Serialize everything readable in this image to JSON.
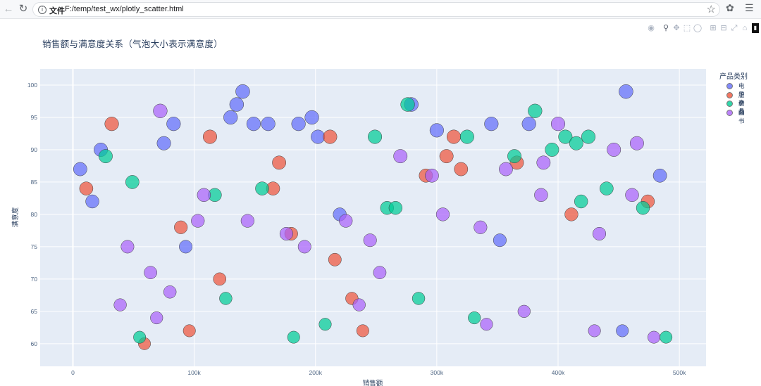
{
  "browser": {
    "file_label": "文件",
    "url": "F:/temp/test_wx/plotly_scatter.html"
  },
  "modebar": {
    "icons": [
      "camera-icon",
      "zoom-icon",
      "pan-icon",
      "box-select-icon",
      "lasso-icon",
      "zoom-in-icon",
      "zoom-out-icon",
      "autoscale-icon",
      "reset-axes-icon",
      "plotly-logo-icon"
    ]
  },
  "colors": {
    "plot_bg": "#e5ecf6",
    "电子产品": "#636efa",
    "服装": "#ef553b",
    "食品": "#00cc96",
    "图书": "#ab63fa"
  },
  "chart_data": {
    "type": "scatter",
    "title": "销售额与满意度关系（气泡大小表示满意度）",
    "xlabel": "销售额",
    "ylabel": "满意度",
    "xlim": [
      -27000,
      522000
    ],
    "ylim": [
      56.5,
      102.5
    ],
    "x_ticks": [
      0,
      100000,
      200000,
      300000,
      400000,
      500000
    ],
    "x_tick_labels": [
      "0",
      "100k",
      "200k",
      "300k",
      "400k",
      "500k"
    ],
    "y_ticks": [
      60,
      65,
      70,
      75,
      80,
      85,
      90,
      95,
      100
    ],
    "y_tick_labels": [
      "60",
      "65",
      "70",
      "75",
      "80",
      "85",
      "90",
      "95",
      "100"
    ],
    "grid": true,
    "legend_title": "产品类别",
    "legend_position": "top-right",
    "series": [
      {
        "name": "电子产品",
        "points": [
          [
            6000,
            87
          ],
          [
            16000,
            82
          ],
          [
            23000,
            90
          ],
          [
            75000,
            91
          ],
          [
            83000,
            94
          ],
          [
            93000,
            75
          ],
          [
            130000,
            95
          ],
          [
            135000,
            97
          ],
          [
            140000,
            99
          ],
          [
            149000,
            94
          ],
          [
            161000,
            94
          ],
          [
            186000,
            94
          ],
          [
            197000,
            95
          ],
          [
            202000,
            92
          ],
          [
            220000,
            80
          ],
          [
            300000,
            93
          ],
          [
            345000,
            94
          ],
          [
            352000,
            76
          ],
          [
            376000,
            94
          ],
          [
            453000,
            62
          ],
          [
            456000,
            99
          ],
          [
            484000,
            86
          ],
          [
            279000,
            97
          ]
        ]
      },
      {
        "name": "服装",
        "points": [
          [
            11000,
            84
          ],
          [
            32000,
            94
          ],
          [
            59000,
            60
          ],
          [
            89000,
            78
          ],
          [
            96000,
            62
          ],
          [
            113000,
            92
          ],
          [
            121000,
            70
          ],
          [
            165000,
            84
          ],
          [
            170000,
            88
          ],
          [
            180000,
            77
          ],
          [
            212000,
            92
          ],
          [
            216000,
            73
          ],
          [
            230000,
            67
          ],
          [
            239000,
            62
          ],
          [
            291000,
            86
          ],
          [
            308000,
            89
          ],
          [
            314000,
            92
          ],
          [
            320000,
            87
          ],
          [
            366000,
            88
          ],
          [
            411000,
            80
          ],
          [
            474000,
            82
          ]
        ]
      },
      {
        "name": "食品",
        "points": [
          [
            27000,
            89
          ],
          [
            49000,
            85
          ],
          [
            55000,
            61
          ],
          [
            117000,
            83
          ],
          [
            126000,
            67
          ],
          [
            156000,
            84
          ],
          [
            182000,
            61
          ],
          [
            208000,
            63
          ],
          [
            249000,
            92
          ],
          [
            259000,
            81
          ],
          [
            266000,
            81
          ],
          [
            276000,
            97
          ],
          [
            285000,
            67
          ],
          [
            325000,
            92
          ],
          [
            331000,
            64
          ],
          [
            364000,
            89
          ],
          [
            381000,
            96
          ],
          [
            395000,
            90
          ],
          [
            406000,
            92
          ],
          [
            415000,
            91
          ],
          [
            419000,
            82
          ],
          [
            425000,
            92
          ],
          [
            440000,
            84
          ],
          [
            470000,
            81
          ],
          [
            489000,
            61
          ]
        ]
      },
      {
        "name": "图书",
        "points": [
          [
            39000,
            66
          ],
          [
            45000,
            75
          ],
          [
            64000,
            71
          ],
          [
            69000,
            64
          ],
          [
            72000,
            96
          ],
          [
            80000,
            68
          ],
          [
            103000,
            79
          ],
          [
            108000,
            83
          ],
          [
            144000,
            79
          ],
          [
            176000,
            77
          ],
          [
            191000,
            75
          ],
          [
            225000,
            79
          ],
          [
            236000,
            66
          ],
          [
            245000,
            76
          ],
          [
            253000,
            71
          ],
          [
            270000,
            89
          ],
          [
            296000,
            86
          ],
          [
            305000,
            80
          ],
          [
            336000,
            78
          ],
          [
            341000,
            63
          ],
          [
            357000,
            87
          ],
          [
            372000,
            65
          ],
          [
            386000,
            83
          ],
          [
            388000,
            88
          ],
          [
            400000,
            94
          ],
          [
            430000,
            62
          ],
          [
            434000,
            77
          ],
          [
            446000,
            90
          ],
          [
            461000,
            83
          ],
          [
            465000,
            91
          ],
          [
            479000,
            61
          ]
        ]
      }
    ]
  }
}
